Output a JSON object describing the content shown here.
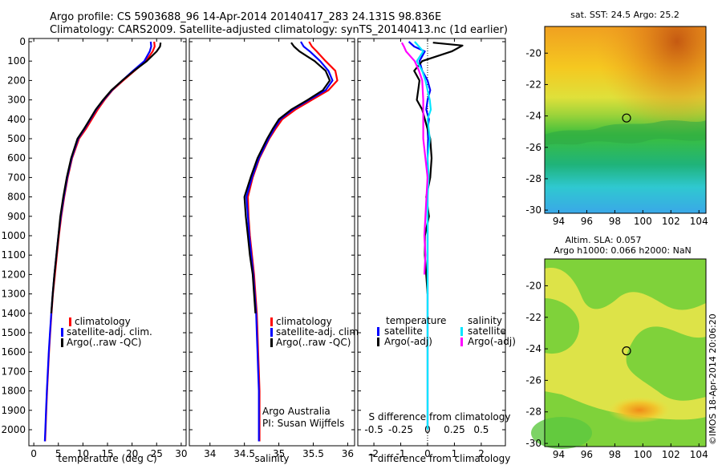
{
  "header": {
    "title_line1": "Argo profile: CS 5903688_96 14-Apr-2014 20140417_283 24.131S 98.836E",
    "title_line2": "Climatology: CARS2009. Satellite-adjusted climatology: synTS_20140413.nc (1d earlier)"
  },
  "colors": {
    "climatology": "#ff0000",
    "satellite": "#0000ff",
    "argo": "#000000",
    "sal_satellite": "#00e5ff",
    "sal_argo": "#ff00ff"
  },
  "credit": {
    "line1": "Argo Australia",
    "line2": "PI: Susan Wijffels"
  },
  "side_stamp": "©IMOS 18-Apr-2014 20:06:20",
  "chart_data": [
    {
      "type": "line",
      "id": "temperature",
      "xlabel": "temperature (deg C)",
      "ylabel": "",
      "xlim": [
        -1,
        31
      ],
      "ylim": [
        2070,
        0
      ],
      "xticks": [
        0,
        5,
        10,
        15,
        20,
        25,
        30
      ],
      "yticks": [
        0,
        100,
        200,
        300,
        400,
        500,
        600,
        700,
        800,
        900,
        1000,
        1100,
        1200,
        1300,
        1400,
        1500,
        1600,
        1700,
        1800,
        1900,
        2000
      ],
      "legend": [
        "climatology",
        "satellite-adj. clim.",
        "Argo(..raw -QC)"
      ],
      "series": [
        {
          "name": "climatology",
          "color": "#ff0000",
          "x": [
            24.5,
            24.6,
            24.2,
            22.8,
            20.5,
            18.2,
            16.0,
            14.4,
            13.0,
            11.8,
            10.6,
            9.2,
            7.8,
            6.9,
            6.2,
            5.6,
            5.1,
            4.7,
            4.3,
            3.9,
            3.6,
            3.35,
            3.1,
            2.9,
            2.7,
            2.55,
            2.4,
            2.3
          ],
          "depth": [
            0,
            25,
            50,
            100,
            150,
            200,
            250,
            300,
            350,
            400,
            450,
            500,
            600,
            700,
            800,
            900,
            1000,
            1100,
            1200,
            1300,
            1400,
            1500,
            1600,
            1700,
            1800,
            1900,
            2000,
            2060
          ]
        },
        {
          "name": "satellite-adj. clim.",
          "color": "#0000ff",
          "x": [
            23.8,
            23.9,
            23.6,
            22.5,
            20.2,
            18.0,
            15.9,
            14.2,
            12.7,
            11.5,
            10.3,
            9.0,
            7.7,
            6.8,
            6.1,
            5.5,
            5.0,
            4.6,
            4.2,
            3.85,
            3.55,
            3.3,
            3.05,
            2.85,
            2.65,
            2.5,
            2.35,
            2.25
          ],
          "depth": [
            0,
            25,
            50,
            100,
            150,
            200,
            250,
            300,
            350,
            400,
            450,
            500,
            600,
            700,
            800,
            900,
            1000,
            1100,
            1200,
            1300,
            1400,
            1500,
            1600,
            1700,
            1800,
            1900,
            2000,
            2060
          ]
        },
        {
          "name": "Argo(..raw -QC)",
          "color": "#000000",
          "x": [
            25.8,
            25.7,
            25.0,
            23.0,
            20.4,
            18.0,
            15.8,
            14.1,
            12.6,
            11.4,
            10.2,
            8.9,
            7.6,
            6.7,
            6.0,
            5.4,
            5.0,
            4.6,
            4.2,
            3.85,
            3.55
          ],
          "depth": [
            5,
            25,
            50,
            100,
            150,
            200,
            250,
            300,
            350,
            400,
            450,
            500,
            600,
            700,
            800,
            900,
            1000,
            1100,
            1200,
            1300,
            1400
          ]
        }
      ]
    },
    {
      "type": "line",
      "id": "salinity",
      "xlabel": "salinity",
      "xlim": [
        33.7,
        36.1
      ],
      "ylim": [
        2070,
        0
      ],
      "xticks": [
        34,
        34.5,
        35,
        35.5,
        36
      ],
      "legend": [
        "climatology",
        "satellite-adj. clim.",
        "Argo(..raw -QC)"
      ],
      "series": [
        {
          "name": "climatology",
          "color": "#ff0000",
          "x": [
            35.44,
            35.48,
            35.55,
            35.68,
            35.82,
            35.85,
            35.72,
            35.48,
            35.24,
            35.05,
            34.95,
            34.86,
            34.72,
            34.62,
            34.55,
            34.56,
            34.58,
            34.61,
            34.64,
            34.66,
            34.68,
            34.69,
            34.7,
            34.71,
            34.72,
            34.72,
            34.72
          ],
          "depth": [
            0,
            25,
            50,
            100,
            150,
            200,
            250,
            300,
            350,
            400,
            450,
            500,
            600,
            700,
            800,
            900,
            1000,
            1100,
            1200,
            1300,
            1400,
            1500,
            1600,
            1700,
            1800,
            1900,
            2060
          ]
        },
        {
          "name": "satellite-adj. clim.",
          "color": "#0000ff",
          "x": [
            35.32,
            35.36,
            35.45,
            35.6,
            35.72,
            35.78,
            35.68,
            35.44,
            35.2,
            35.02,
            34.93,
            34.85,
            34.71,
            34.61,
            34.53,
            34.55,
            34.57,
            34.6,
            34.63,
            34.65,
            34.67,
            34.68,
            34.69,
            34.7,
            34.71,
            34.71,
            34.71
          ],
          "depth": [
            0,
            25,
            50,
            100,
            150,
            200,
            250,
            300,
            350,
            400,
            450,
            500,
            600,
            700,
            800,
            900,
            1000,
            1100,
            1200,
            1300,
            1400,
            1500,
            1600,
            1700,
            1800,
            1900,
            2060
          ]
        },
        {
          "name": "Argo(..raw -QC)",
          "color": "#000000",
          "x": [
            35.18,
            35.22,
            35.3,
            35.52,
            35.68,
            35.74,
            35.64,
            35.42,
            35.18,
            35.0,
            34.91,
            34.83,
            34.69,
            34.59,
            34.5,
            34.52,
            34.55,
            34.58,
            34.62,
            34.64,
            34.66
          ],
          "depth": [
            5,
            25,
            50,
            100,
            150,
            200,
            250,
            300,
            350,
            400,
            450,
            500,
            600,
            700,
            800,
            900,
            1000,
            1100,
            1200,
            1300,
            1400
          ]
        }
      ]
    },
    {
      "type": "line",
      "id": "differences",
      "xlabel": "T difference from climatology",
      "xlabel_top": "S difference from climatology",
      "xlim": [
        -2.6,
        2.9
      ],
      "ylim": [
        2070,
        0
      ],
      "xticks": [
        -2,
        -1,
        0,
        1,
        2
      ],
      "xticks_top": [
        -0.5,
        -0.25,
        0,
        0.25,
        0.5
      ],
      "legend_groups": [
        "temperature",
        "salinity"
      ],
      "legend": [
        "satellite",
        "Argo(-adj)",
        "satellite",
        "Argo(-adj)"
      ],
      "series": [
        {
          "name": "temperature satellite",
          "group": "temperature",
          "color": "#0000ff",
          "x": [
            -0.7,
            -0.5,
            -0.1,
            -0.3,
            -0.2,
            0.0,
            0.1,
            0.0,
            -0.05,
            0.05,
            0.0,
            0.02,
            0.0,
            0.0,
            0.0,
            0.0,
            0.0,
            0.0,
            0.0,
            0.0,
            0.0,
            0.0,
            0.0,
            0.0
          ],
          "depth": [
            0,
            25,
            50,
            100,
            150,
            200,
            250,
            300,
            350,
            400,
            450,
            500,
            600,
            700,
            800,
            900,
            1000,
            1100,
            1200,
            1400,
            1600,
            1800,
            1900,
            2000
          ]
        },
        {
          "name": "temperature Argo(-adj)",
          "group": "temperature",
          "color": "#000000",
          "x": [
            0.2,
            1.3,
            0.9,
            -0.2,
            -0.5,
            -0.3,
            -0.35,
            -0.4,
            -0.2,
            -0.1,
            0.0,
            0.1,
            0.15,
            0.1,
            -0.05,
            0.05,
            -0.1,
            -0.1,
            -0.05,
            0.0
          ],
          "depth": [
            5,
            20,
            50,
            100,
            150,
            200,
            250,
            300,
            350,
            400,
            450,
            500,
            600,
            700,
            800,
            900,
            1000,
            1100,
            1200,
            1300
          ]
        },
        {
          "name": "salinity satellite",
          "group": "salinity",
          "color": "#00e5ff",
          "x": [
            -0.12,
            -0.04,
            -0.1,
            -0.05,
            -0.02,
            0.0,
            0.02,
            0.03,
            0.0,
            0.02,
            0.0,
            0.01,
            0.0,
            0.0,
            0.0,
            0.0,
            0.0,
            0.0,
            0.0,
            0.0,
            0.0
          ],
          "depth": [
            0,
            50,
            100,
            150,
            200,
            250,
            300,
            350,
            400,
            500,
            600,
            700,
            800,
            900,
            1000,
            1200,
            1400,
            1600,
            1800,
            1900,
            2000
          ]
        },
        {
          "name": "salinity Argo(-adj)",
          "group": "salinity",
          "color": "#ff00ff",
          "x": [
            -0.24,
            -0.22,
            -0.2,
            -0.12,
            -0.08,
            -0.05,
            -0.04,
            -0.04,
            -0.04,
            -0.02,
            0.0,
            -0.01,
            -0.02,
            -0.03,
            -0.02,
            -0.03
          ],
          "depth": [
            5,
            25,
            50,
            100,
            150,
            200,
            300,
            400,
            500,
            600,
            700,
            800,
            900,
            1000,
            1100,
            1200
          ]
        }
      ]
    },
    {
      "type": "heatmap",
      "id": "sst_map",
      "title": "sat. SST: 24.5 Argo: 25.2",
      "xlim": [
        93,
        104.5
      ],
      "ylim": [
        -30.2,
        -18.3
      ],
      "xticks": [
        94,
        96,
        98,
        100,
        102,
        104
      ],
      "yticks": [
        -20,
        -22,
        -24,
        -26,
        -28,
        -30
      ],
      "argo_position": {
        "lon": 98.836,
        "lat": -24.131
      }
    },
    {
      "type": "heatmap",
      "id": "sla_map",
      "title_line1": "Altim. SLA: 0.057",
      "title_line2": "Argo h1000: 0.066 h2000: NaN",
      "xlim": [
        93,
        104.5
      ],
      "ylim": [
        -30.2,
        -18.3
      ],
      "xticks": [
        94,
        96,
        98,
        100,
        102,
        104
      ],
      "yticks": [
        -20,
        -22,
        -24,
        -26,
        -28,
        -30
      ],
      "argo_position": {
        "lon": 98.836,
        "lat": -24.131
      }
    }
  ]
}
